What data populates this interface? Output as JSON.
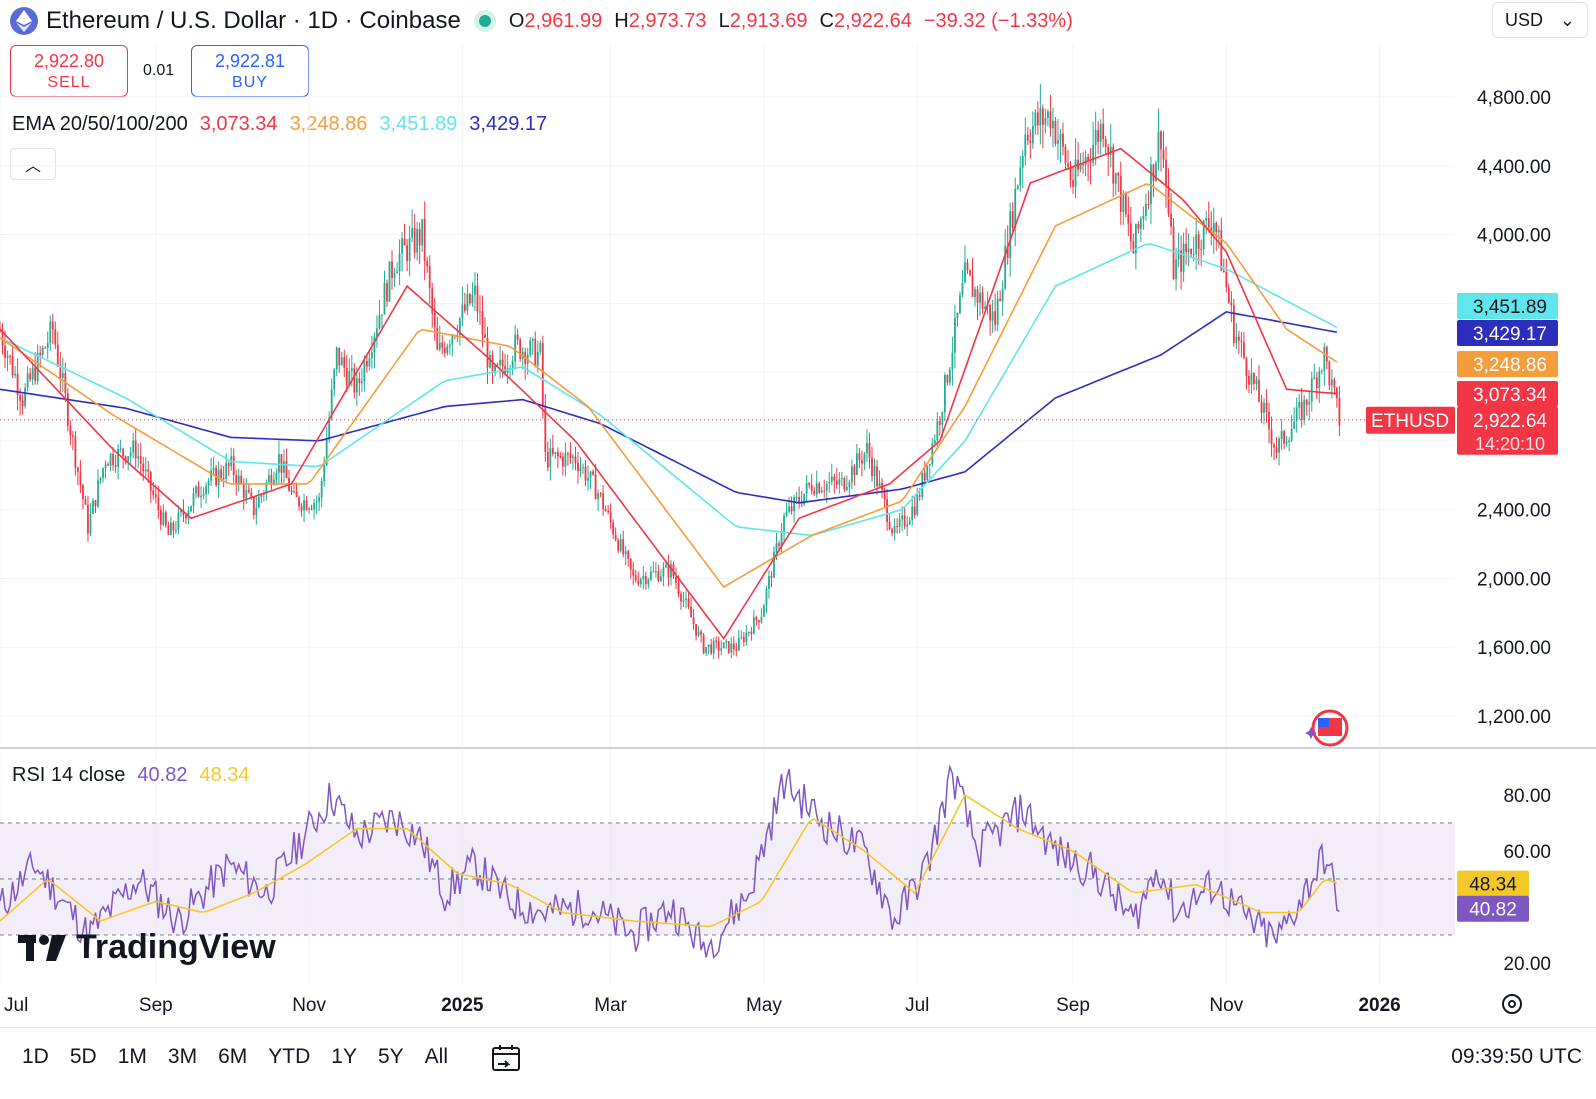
{
  "header": {
    "symbol_title": "Ethereum / U.S. Dollar · 1D · Coinbase",
    "open_label": "O",
    "open": "2,961.99",
    "high_label": "H",
    "high": "2,973.73",
    "low_label": "L",
    "low": "2,913.69",
    "close_label": "C",
    "close": "2,922.64",
    "change": "−39.32 (−1.33%)",
    "currency": "USD"
  },
  "trade": {
    "sell_price": "2,922.80",
    "sell_label": "SELL",
    "spread": "0.01",
    "buy_price": "2,922.81",
    "buy_label": "BUY"
  },
  "ema_legend": {
    "title": "EMA 20/50/100/200",
    "ema20": "3,073.34",
    "ema50": "3,248.86",
    "ema100": "3,451.89",
    "ema200": "3,429.17"
  },
  "rsi_legend": {
    "title": "RSI 14 close",
    "rsi": "40.82",
    "rsi_ma": "48.34"
  },
  "bottom": {
    "ranges": [
      "1D",
      "5D",
      "1M",
      "3M",
      "6M",
      "YTD",
      "1Y",
      "5Y",
      "All"
    ],
    "utc_time": "09:39:50 UTC"
  },
  "logo_text": "TradingView",
  "colors": {
    "up": "#22ab94",
    "down": "#f23645",
    "ema20": "#f23645",
    "ema50": "#f59d3b",
    "ema100": "#5ee6ec",
    "ema200": "#2e2ebd",
    "rsi": "#7e57c2",
    "rsi_ma": "#f5c82a"
  },
  "chart_data": [
    {
      "type": "candlestick",
      "title": "Ethereum / U.S. Dollar · 1D · Coinbase",
      "price_ticks": [
        1200,
        1600,
        2000,
        2400,
        4000,
        4400,
        4800
      ],
      "price_labels": [
        "1,200.00",
        "1,600.00",
        "2,000.00",
        "2,400.00",
        "4,000.00",
        "4,400.00",
        "4,800.00"
      ],
      "ylim": [
        1040,
        4950
      ],
      "x_labels": [
        "Jul",
        "Sep",
        "Nov",
        "2025",
        "Mar",
        "May",
        "Jul",
        "Sep",
        "Nov",
        "2026"
      ],
      "xlim": [
        "2024-07-01",
        "2026-01-31"
      ],
      "price_anchors": [
        [
          "2024-07-01",
          3440
        ],
        [
          "2024-07-10",
          3050
        ],
        [
          "2024-07-22",
          3450
        ],
        [
          "2024-08-05",
          2300
        ],
        [
          "2024-08-12",
          2700
        ],
        [
          "2024-08-24",
          2750
        ],
        [
          "2024-09-06",
          2250
        ],
        [
          "2024-09-20",
          2550
        ],
        [
          "2024-10-01",
          2650
        ],
        [
          "2024-10-10",
          2400
        ],
        [
          "2024-10-20",
          2700
        ],
        [
          "2024-10-26",
          2450
        ],
        [
          "2024-11-05",
          2450
        ],
        [
          "2024-11-12",
          3300
        ],
        [
          "2024-11-20",
          3100
        ],
        [
          "2024-12-05",
          3850
        ],
        [
          "2024-12-16",
          4000
        ],
        [
          "2024-12-22",
          3300
        ],
        [
          "2025-01-06",
          3650
        ],
        [
          "2025-01-13",
          3150
        ],
        [
          "2025-01-22",
          3350
        ],
        [
          "2025-02-01",
          3300
        ],
        [
          "2025-02-03",
          2700
        ],
        [
          "2025-02-15",
          2700
        ],
        [
          "2025-02-24",
          2500
        ],
        [
          "2025-03-10",
          2000
        ],
        [
          "2025-03-25",
          2050
        ],
        [
          "2025-04-07",
          1600
        ],
        [
          "2025-04-20",
          1600
        ],
        [
          "2025-04-30",
          1800
        ],
        [
          "2025-05-09",
          2350
        ],
        [
          "2025-05-20",
          2550
        ],
        [
          "2025-06-01",
          2550
        ],
        [
          "2025-06-11",
          2750
        ],
        [
          "2025-06-22",
          2250
        ],
        [
          "2025-07-01",
          2450
        ],
        [
          "2025-07-10",
          2950
        ],
        [
          "2025-07-20",
          3750
        ],
        [
          "2025-08-01",
          3500
        ],
        [
          "2025-08-13",
          4600
        ],
        [
          "2025-08-23",
          4700
        ],
        [
          "2025-09-01",
          4300
        ],
        [
          "2025-09-13",
          4650
        ],
        [
          "2025-09-25",
          3900
        ],
        [
          "2025-10-06",
          4600
        ],
        [
          "2025-10-11",
          3800
        ],
        [
          "2025-10-27",
          4100
        ],
        [
          "2025-11-04",
          3450
        ],
        [
          "2025-11-21",
          2750
        ],
        [
          "2025-12-02",
          3000
        ],
        [
          "2025-12-10",
          3300
        ],
        [
          "2025-12-16",
          2922.64
        ]
      ],
      "ema_anchors": {
        "ema20": [
          [
            "2024-07-01",
            3450
          ],
          [
            "2024-08-15",
            2750
          ],
          [
            "2024-09-15",
            2350
          ],
          [
            "2024-10-25",
            2550
          ],
          [
            "2024-12-10",
            3700
          ],
          [
            "2025-01-10",
            3300
          ],
          [
            "2025-02-15",
            2800
          ],
          [
            "2025-04-15",
            1650
          ],
          [
            "2025-05-15",
            2350
          ],
          [
            "2025-06-20",
            2550
          ],
          [
            "2025-07-10",
            2800
          ],
          [
            "2025-08-15",
            4300
          ],
          [
            "2025-09-20",
            4500
          ],
          [
            "2025-10-15",
            4200
          ],
          [
            "2025-11-01",
            3900
          ],
          [
            "2025-11-25",
            3100
          ],
          [
            "2025-12-16",
            3073.34
          ]
        ],
        "ema50": [
          [
            "2024-07-01",
            3400
          ],
          [
            "2024-08-15",
            2950
          ],
          [
            "2024-09-30",
            2550
          ],
          [
            "2024-11-01",
            2550
          ],
          [
            "2024-12-15",
            3450
          ],
          [
            "2025-01-20",
            3350
          ],
          [
            "2025-02-20",
            3000
          ],
          [
            "2025-04-15",
            1950
          ],
          [
            "2025-05-20",
            2250
          ],
          [
            "2025-06-25",
            2450
          ],
          [
            "2025-07-20",
            3000
          ],
          [
            "2025-08-25",
            4050
          ],
          [
            "2025-10-01",
            4300
          ],
          [
            "2025-11-01",
            3950
          ],
          [
            "2025-11-25",
            3450
          ],
          [
            "2025-12-16",
            3248.86
          ]
        ],
        "ema100": [
          [
            "2024-07-01",
            3400
          ],
          [
            "2024-08-20",
            3050
          ],
          [
            "2024-10-01",
            2680
          ],
          [
            "2024-11-05",
            2650
          ],
          [
            "2024-12-25",
            3150
          ],
          [
            "2025-01-25",
            3230
          ],
          [
            "2025-02-25",
            2950
          ],
          [
            "2025-04-20",
            2300
          ],
          [
            "2025-05-20",
            2250
          ],
          [
            "2025-06-25",
            2400
          ],
          [
            "2025-07-20",
            2800
          ],
          [
            "2025-08-25",
            3700
          ],
          [
            "2025-10-01",
            3950
          ],
          [
            "2025-11-01",
            3800
          ],
          [
            "2025-12-16",
            3451.89
          ]
        ],
        "ema200": [
          [
            "2024-07-01",
            3100
          ],
          [
            "2024-08-20",
            2990
          ],
          [
            "2024-10-01",
            2820
          ],
          [
            "2024-11-05",
            2800
          ],
          [
            "2024-12-25",
            3000
          ],
          [
            "2025-01-25",
            3040
          ],
          [
            "2025-02-25",
            2900
          ],
          [
            "2025-04-20",
            2500
          ],
          [
            "2025-05-15",
            2440
          ],
          [
            "2025-06-25",
            2520
          ],
          [
            "2025-07-20",
            2620
          ],
          [
            "2025-08-25",
            3050
          ],
          [
            "2025-10-06",
            3300
          ],
          [
            "2025-11-01",
            3550
          ],
          [
            "2025-12-16",
            3429.17
          ]
        ]
      },
      "last_value_labels": [
        {
          "text": "3,451.89",
          "value": 3451.89,
          "color": "#5ee6ec"
        },
        {
          "text": "3,429.17",
          "value": 3429.17,
          "color": "#2e2ebd"
        },
        {
          "text": "3,248.86",
          "value": 3248.86,
          "color": "#f59d3b"
        },
        {
          "text": "3,073.34",
          "value": 3073.34,
          "color": "#f23645"
        }
      ],
      "last_price": {
        "symbol": "ETHUSD",
        "value": 2922.64,
        "text": "2,922.64",
        "countdown": "14:20:10"
      }
    },
    {
      "type": "line",
      "title": "RSI 14 close",
      "ticks": [
        20,
        60,
        80
      ],
      "tick_labels": [
        "20.00",
        "60.00",
        "80.00"
      ],
      "bands": [
        30,
        50,
        70
      ],
      "ylim": [
        15,
        90
      ],
      "series": [
        {
          "name": "RSI",
          "anchors": [
            [
              "2024-07-01",
              40
            ],
            [
              "2024-07-15",
              55
            ],
            [
              "2024-08-05",
              30
            ],
            [
              "2024-08-25",
              50
            ],
            [
              "2024-09-10",
              35
            ],
            [
              "2024-09-30",
              55
            ],
            [
              "2024-10-15",
              45
            ],
            [
              "2024-10-26",
              60
            ],
            [
              "2024-11-10",
              80
            ],
            [
              "2024-11-20",
              65
            ],
            [
              "2024-12-05",
              72
            ],
            [
              "2024-12-15",
              65
            ],
            [
              "2024-12-25",
              45
            ],
            [
              "2025-01-06",
              55
            ],
            [
              "2025-01-20",
              42
            ],
            [
              "2025-02-03",
              38
            ],
            [
              "2025-02-20",
              40
            ],
            [
              "2025-03-10",
              30
            ],
            [
              "2025-03-25",
              40
            ],
            [
              "2025-04-08",
              25
            ],
            [
              "2025-04-25",
              45
            ],
            [
              "2025-05-09",
              85
            ],
            [
              "2025-05-25",
              70
            ],
            [
              "2025-06-10",
              60
            ],
            [
              "2025-06-22",
              35
            ],
            [
              "2025-07-05",
              55
            ],
            [
              "2025-07-15",
              88
            ],
            [
              "2025-07-25",
              60
            ],
            [
              "2025-08-12",
              75
            ],
            [
              "2025-08-25",
              60
            ],
            [
              "2025-09-10",
              52
            ],
            [
              "2025-09-25",
              35
            ],
            [
              "2025-10-05",
              55
            ],
            [
              "2025-10-12",
              38
            ],
            [
              "2025-10-27",
              48
            ],
            [
              "2025-11-10",
              35
            ],
            [
              "2025-11-21",
              28
            ],
            [
              "2025-12-02",
              45
            ],
            [
              "2025-12-10",
              58
            ],
            [
              "2025-12-16",
              40.82
            ]
          ]
        },
        {
          "name": "RSI MA",
          "anchors": [
            [
              "2024-07-01",
              35
            ],
            [
              "2024-07-20",
              50
            ],
            [
              "2024-08-10",
              35
            ],
            [
              "2024-09-01",
              42
            ],
            [
              "2024-09-20",
              38
            ],
            [
              "2024-10-10",
              45
            ],
            [
              "2024-10-30",
              55
            ],
            [
              "2024-11-20",
              68
            ],
            [
              "2024-12-10",
              68
            ],
            [
              "2024-12-30",
              52
            ],
            [
              "2025-01-20",
              48
            ],
            [
              "2025-02-10",
              38
            ],
            [
              "2025-03-10",
              35
            ],
            [
              "2025-04-10",
              33
            ],
            [
              "2025-04-30",
              42
            ],
            [
              "2025-05-20",
              72
            ],
            [
              "2025-06-10",
              60
            ],
            [
              "2025-06-30",
              45
            ],
            [
              "2025-07-20",
              80
            ],
            [
              "2025-08-10",
              68
            ],
            [
              "2025-09-01",
              60
            ],
            [
              "2025-09-25",
              45
            ],
            [
              "2025-10-20",
              48
            ],
            [
              "2025-11-15",
              38
            ],
            [
              "2025-11-30",
              38
            ],
            [
              "2025-12-10",
              50
            ],
            [
              "2025-12-16",
              48.34
            ]
          ]
        }
      ],
      "last_values": [
        {
          "text": "48.34",
          "value": 48.34,
          "color": "#f5c82a"
        },
        {
          "text": "40.82",
          "value": 40.82,
          "color": "#7e57c2"
        }
      ]
    }
  ]
}
